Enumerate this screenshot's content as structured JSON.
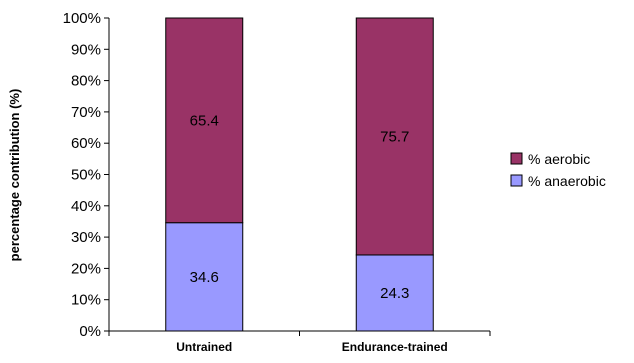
{
  "chart_data": {
    "type": "bar",
    "stacked": true,
    "percent_axis": true,
    "categories": [
      "Untrained",
      "Endurance-trained"
    ],
    "series": [
      {
        "name": "% anaerobic",
        "color": "#9999ff",
        "values": [
          34.6,
          24.3
        ]
      },
      {
        "name": "% aerobic",
        "color": "#993366",
        "values": [
          65.4,
          75.7
        ]
      }
    ],
    "ylabel": "percentage contribution (%)",
    "xlabel": "",
    "ylim": [
      0,
      100
    ],
    "yticks": [
      0,
      10,
      20,
      30,
      40,
      50,
      60,
      70,
      80,
      90,
      100
    ],
    "ytick_labels": [
      "0%",
      "10%",
      "20%",
      "30%",
      "40%",
      "50%",
      "60%",
      "70%",
      "80%",
      "90%",
      "100%"
    ],
    "grid": false,
    "legend": {
      "placement": "right",
      "order": [
        1,
        0
      ]
    }
  }
}
